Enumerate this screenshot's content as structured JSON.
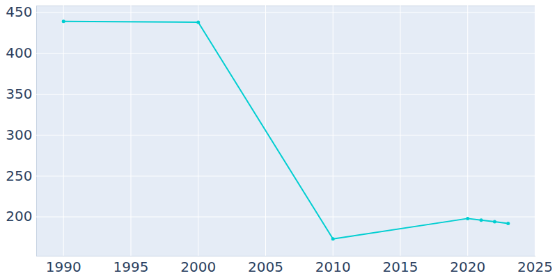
{
  "chart_data": {
    "type": "line",
    "x": [
      1990,
      2000,
      2010,
      2020,
      2021,
      2022,
      2023
    ],
    "values": [
      439,
      438,
      173,
      198,
      196,
      194,
      192
    ],
    "color": "#00ced1",
    "marker": "circle",
    "xlim": [
      1988,
      2025
    ],
    "xticks": [
      1990,
      1995,
      2000,
      2005,
      2010,
      2015,
      2020,
      2025
    ],
    "ylim": [
      152,
      458
    ],
    "yticks": [
      200,
      250,
      300,
      350,
      400,
      450
    ],
    "grid": true
  }
}
